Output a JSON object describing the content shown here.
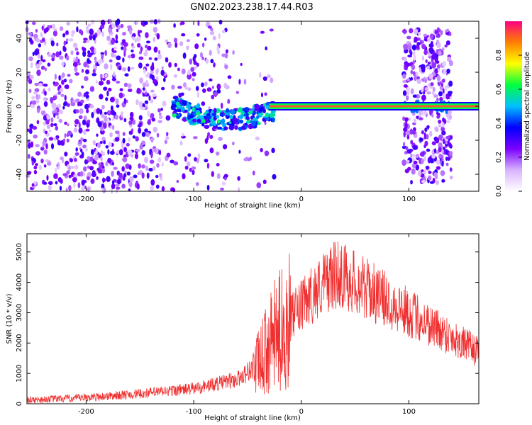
{
  "title": "GN02.2023.238.17.44.R03",
  "chart_data": [
    {
      "type": "heatmap",
      "xlabel": "Height of straight line (km)",
      "ylabel": "Frequency (Hz)",
      "xlim": [
        -255,
        165
      ],
      "ylim": [
        -50,
        50
      ],
      "xticks": [
        -200,
        -100,
        0,
        100
      ],
      "yticks": [
        -40,
        -20,
        0,
        20,
        40
      ],
      "colorbar": {
        "label": "Normalized spectral amplitude",
        "range": [
          0,
          1
        ],
        "ticks": [
          "0.0",
          "0.2",
          "0.4",
          "0.6",
          "0.8"
        ],
        "colormap": [
          "#ffffff",
          "#d9b3ff",
          "#7a00ff",
          "#0000ff",
          "#00c0ff",
          "#00ff40",
          "#ffff00",
          "#ff8000",
          "#ff0080"
        ]
      },
      "features": {
        "noise_region_x": [
          -255,
          -25
        ],
        "carrier_tone_hz": 0,
        "carrier_x": [
          -30,
          165
        ],
        "doppler_drift_x": [
          -120,
          -25
        ],
        "second_noise_band_x": [
          95,
          140
        ]
      }
    },
    {
      "type": "line",
      "xlabel": "Height of straight line (km)",
      "ylabel": "SNR (10 * v/v)",
      "xlim": [
        -255,
        165
      ],
      "ylim": [
        0,
        5600
      ],
      "xticks": [
        -200,
        -100,
        0,
        100
      ],
      "yticks": [
        0,
        1000,
        2000,
        3000,
        4000,
        5000
      ],
      "line_color": "#f03030",
      "trend": {
        "x": [
          -255,
          -200,
          -150,
          -100,
          -60,
          -40,
          -25,
          -15,
          -5,
          10,
          25,
          35,
          50,
          80,
          120,
          165
        ],
        "y": [
          120,
          200,
          330,
          500,
          800,
          1300,
          2200,
          2600,
          3000,
          3600,
          4100,
          4300,
          4000,
          3400,
          2600,
          1700
        ]
      }
    }
  ]
}
